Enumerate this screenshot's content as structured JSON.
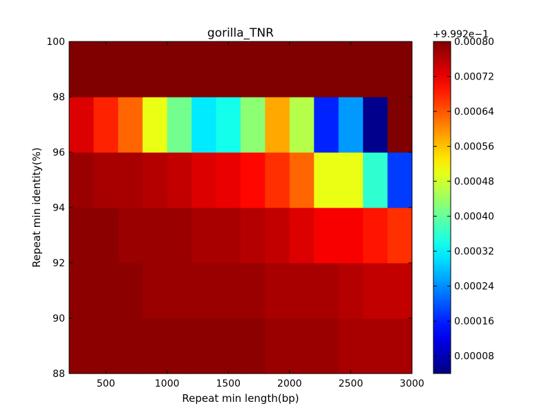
{
  "chart_data": {
    "type": "heatmap",
    "title": "gorilla_TNR",
    "xlabel": "Repeat min length(bp)",
    "ylabel": "Repeat min identity(%)",
    "x_range": [
      200,
      3000
    ],
    "y_range": [
      88,
      100
    ],
    "x_ticks": [
      "500",
      "1000",
      "1500",
      "2000",
      "2500",
      "3000"
    ],
    "y_ticks": [
      "88",
      "90",
      "92",
      "94",
      "96",
      "98",
      "100"
    ],
    "colorbar": {
      "offset_label": "+9.992e−1",
      "range": [
        4e-05,
        0.0008
      ],
      "ticks": [
        "0.00008",
        "0.00016",
        "0.00024",
        "0.00032",
        "0.00040",
        "0.00048",
        "0.00056",
        "0.00064",
        "0.00072",
        "0.00080"
      ]
    },
    "x_edges": [
      200,
      400,
      600,
      800,
      1000,
      1200,
      1400,
      1600,
      1800,
      2000,
      2200,
      2400,
      2600,
      2800,
      3000
    ],
    "y_edges": [
      88,
      90,
      92,
      94,
      96,
      98,
      100
    ],
    "values": [
      [
        0.00079,
        0.00079,
        0.00079,
        0.00079,
        0.00079,
        0.00079,
        0.00079,
        0.00079,
        0.00078,
        0.00078,
        0.00078,
        0.00077,
        0.00077,
        0.00077
      ],
      [
        0.00079,
        0.00079,
        0.00079,
        0.00078,
        0.00078,
        0.00078,
        0.00078,
        0.00078,
        0.00077,
        0.00077,
        0.00077,
        0.00076,
        0.00075,
        0.00075
      ],
      [
        0.00079,
        0.00079,
        0.00078,
        0.00078,
        0.00078,
        0.00077,
        0.00077,
        0.00076,
        0.00075,
        0.00073,
        0.00071,
        0.00071,
        0.00069,
        0.00067
      ],
      [
        0.00078,
        0.00077,
        0.00077,
        0.00076,
        0.00075,
        0.00073,
        0.00072,
        0.0007,
        0.00067,
        0.00063,
        0.0005,
        0.0005,
        0.00036,
        0.00018
      ],
      [
        0.00073,
        0.00068,
        0.00063,
        0.0005,
        0.00041,
        0.00031,
        0.00034,
        0.00043,
        0.00058,
        0.00046,
        0.00016,
        0.00025,
        5e-05,
        0.0008
      ],
      [
        0.0008,
        0.0008,
        0.0008,
        0.0008,
        0.0008,
        0.0008,
        0.0008,
        0.0008,
        0.0008,
        0.0008,
        0.0008,
        0.0008,
        0.0008,
        0.0008
      ]
    ]
  }
}
